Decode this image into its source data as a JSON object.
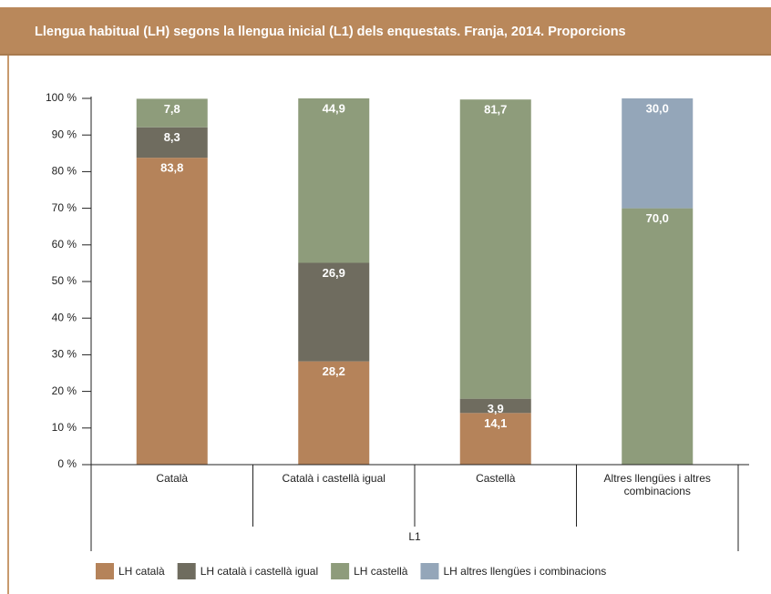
{
  "chart_data": {
    "type": "stacked-bar",
    "title": "Llengua habitual (LH) segons la llengua inicial (L1) dels enquestats. Franja, 2014. Proporcions",
    "x_label": "L1",
    "categories": [
      "Català",
      "Català i castellà igual",
      "Castellà",
      "Altres llengües i altres combinacions"
    ],
    "series": [
      {
        "name": "LH català",
        "color": "#b5835a",
        "values": [
          83.8,
          28.2,
          14.1,
          null
        ],
        "value_labels": [
          "83,8",
          "28,2",
          "14,1",
          null
        ]
      },
      {
        "name": "LH català i castellà igual",
        "color": "#6f6c5f",
        "values": [
          8.3,
          26.9,
          3.9,
          null
        ],
        "value_labels": [
          "8,3",
          "26,9",
          "3,9",
          null
        ]
      },
      {
        "name": "LH castellà",
        "color": "#8e9c7b",
        "values": [
          7.8,
          44.9,
          81.7,
          70.0
        ],
        "value_labels": [
          "7,8",
          "44,9",
          "81,7",
          "70,0"
        ]
      },
      {
        "name": "LH altres llengües i combinacions",
        "color": "#94a6b9",
        "values": [
          null,
          null,
          null,
          30.0
        ],
        "value_labels": [
          null,
          null,
          null,
          "30,0"
        ]
      }
    ],
    "ylim": [
      0,
      100
    ],
    "yticks": [
      {
        "value": 0,
        "label": "0 %"
      },
      {
        "value": 10,
        "label": "10 %"
      },
      {
        "value": 20,
        "label": "20 %"
      },
      {
        "value": 30,
        "label": "30 %"
      },
      {
        "value": 40,
        "label": "40 %"
      },
      {
        "value": 50,
        "label": "50 %"
      },
      {
        "value": 60,
        "label": "60 %"
      },
      {
        "value": 70,
        "label": "70 %"
      },
      {
        "value": 80,
        "label": "80 %"
      },
      {
        "value": 90,
        "label": "90 %"
      },
      {
        "value": 100,
        "label": "100 %"
      }
    ],
    "legend": "bottom"
  }
}
